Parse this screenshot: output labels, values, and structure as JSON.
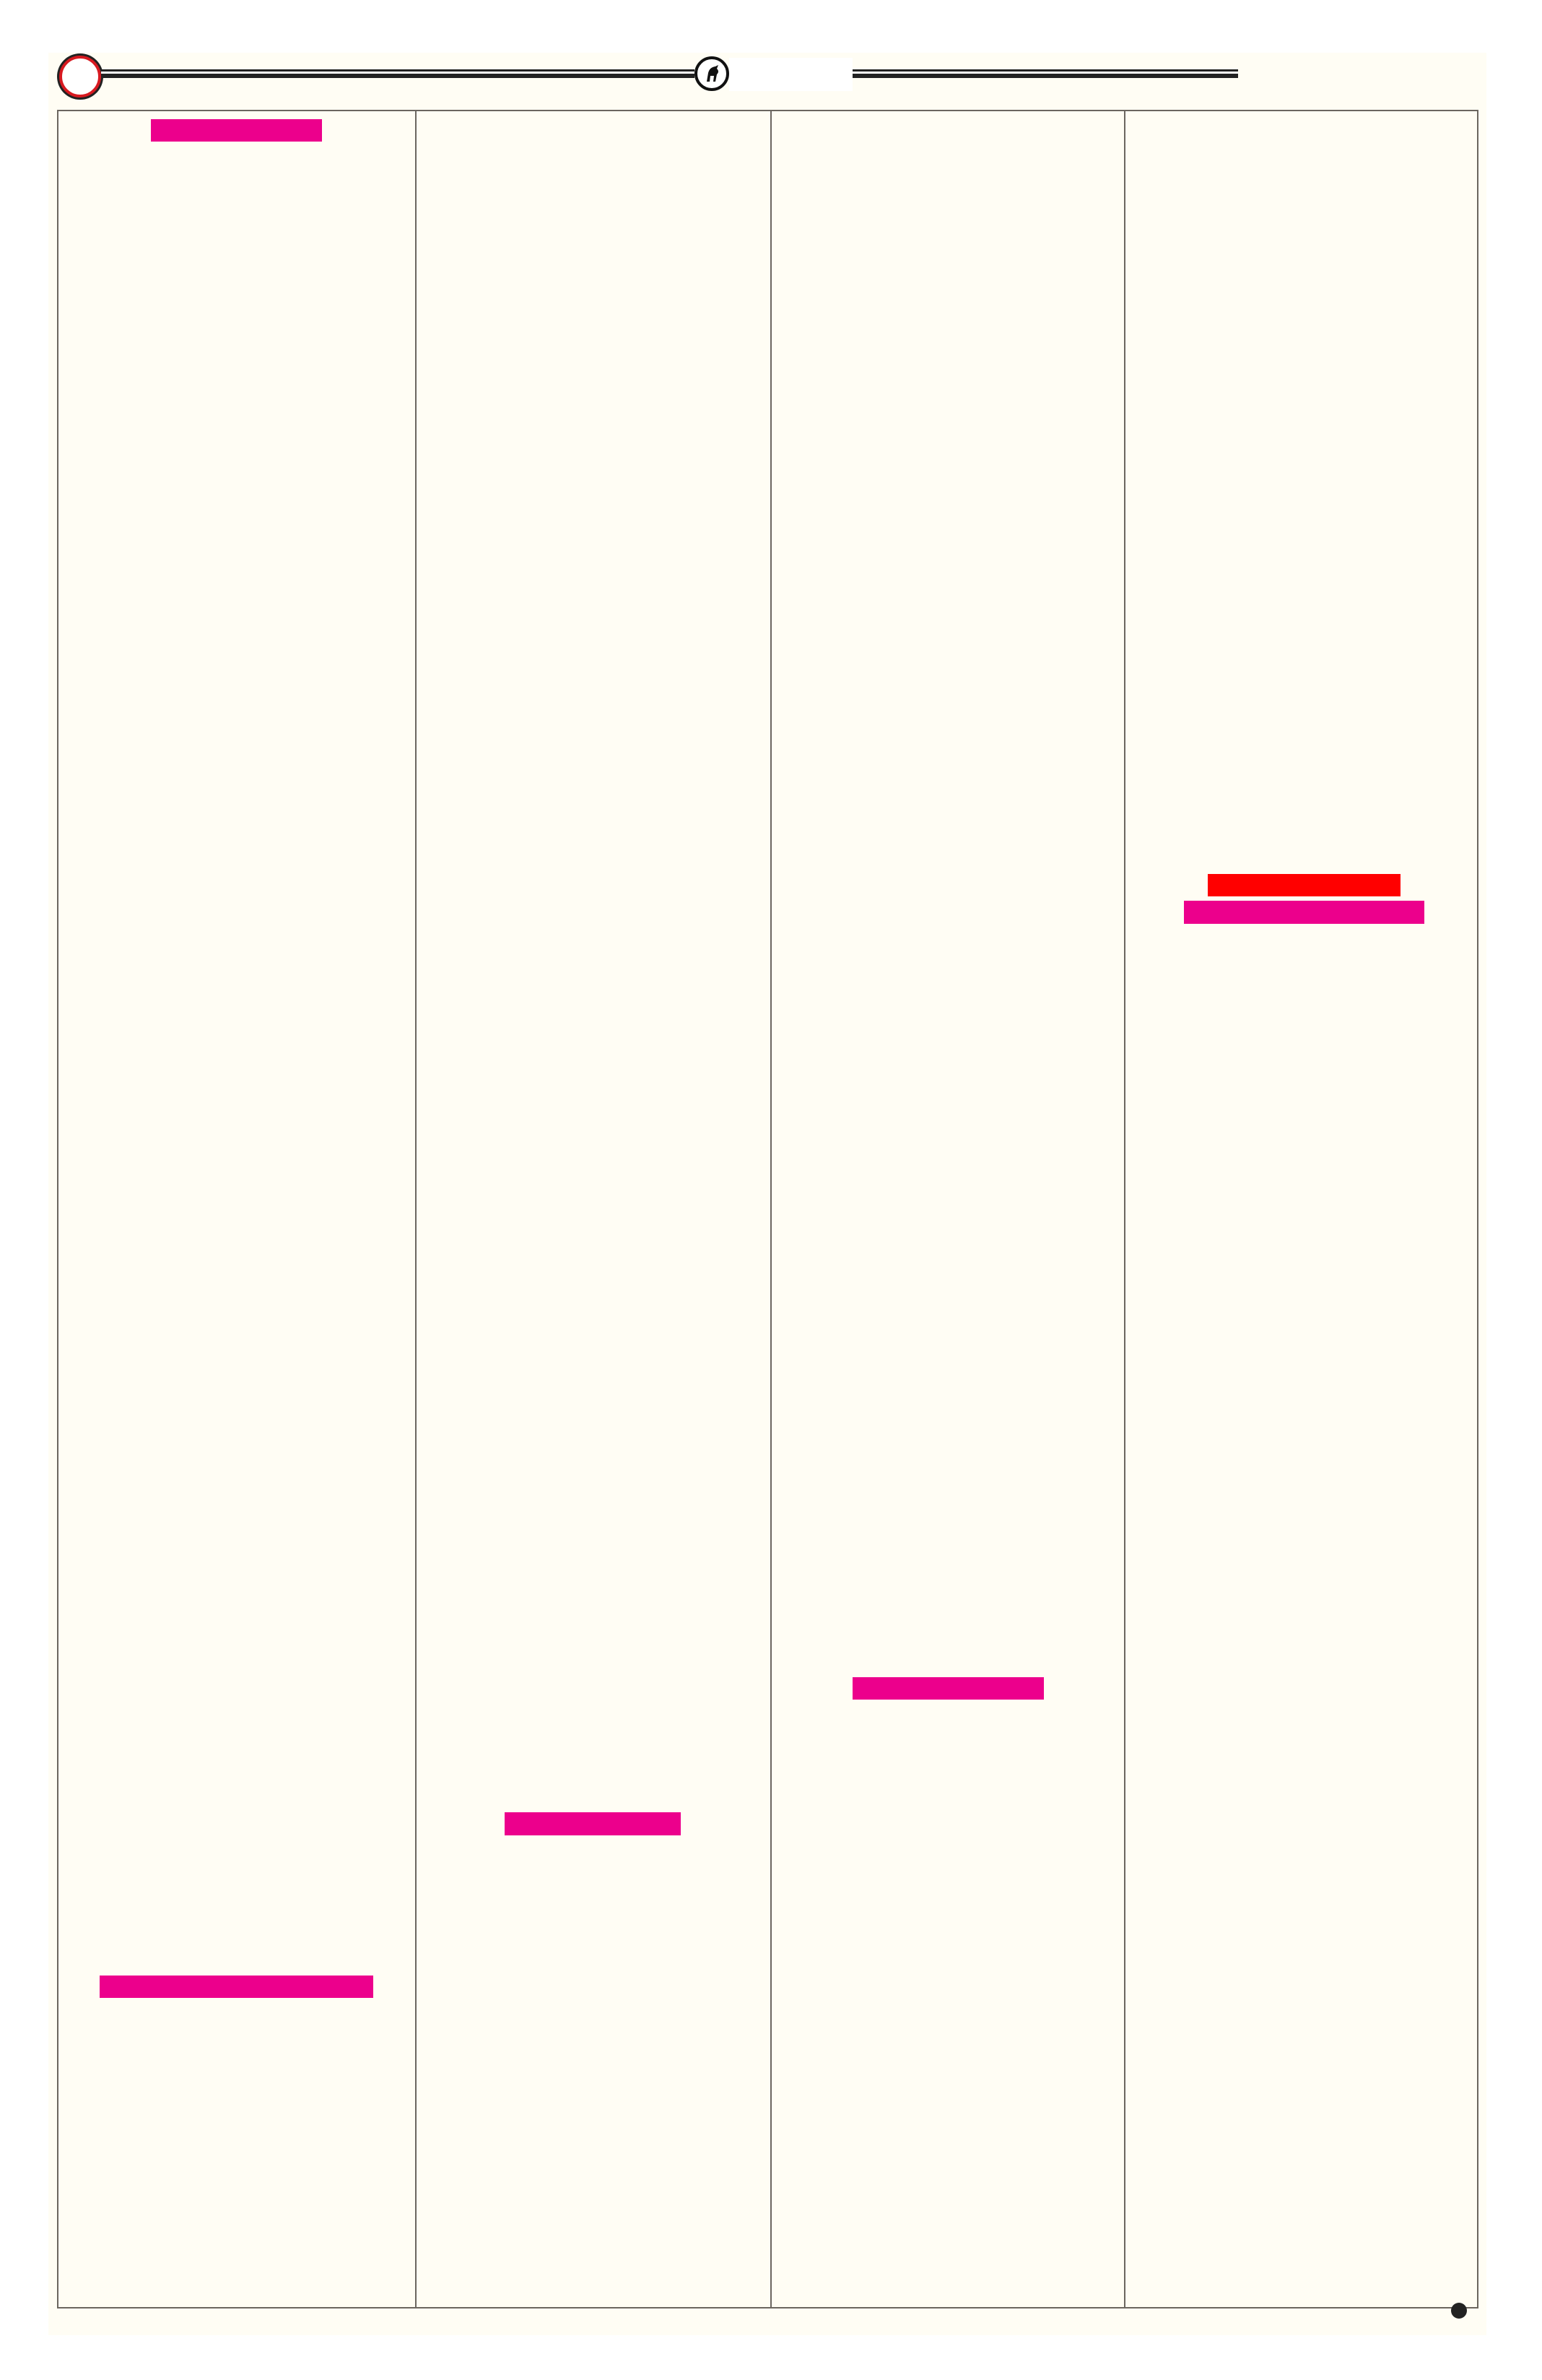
{
  "page": {
    "background_color": "#fffdf4",
    "columns": 4,
    "header": {
      "ring_icon": "circle-ring-icon",
      "logo_icon": "horse-emblem-icon",
      "ring_color": "#d71920"
    },
    "redactions": {
      "primary_color": "#ec008c",
      "secondary_color": "#ff0000"
    },
    "footer": {
      "marker_icon": "bullet-dot-icon"
    }
  }
}
